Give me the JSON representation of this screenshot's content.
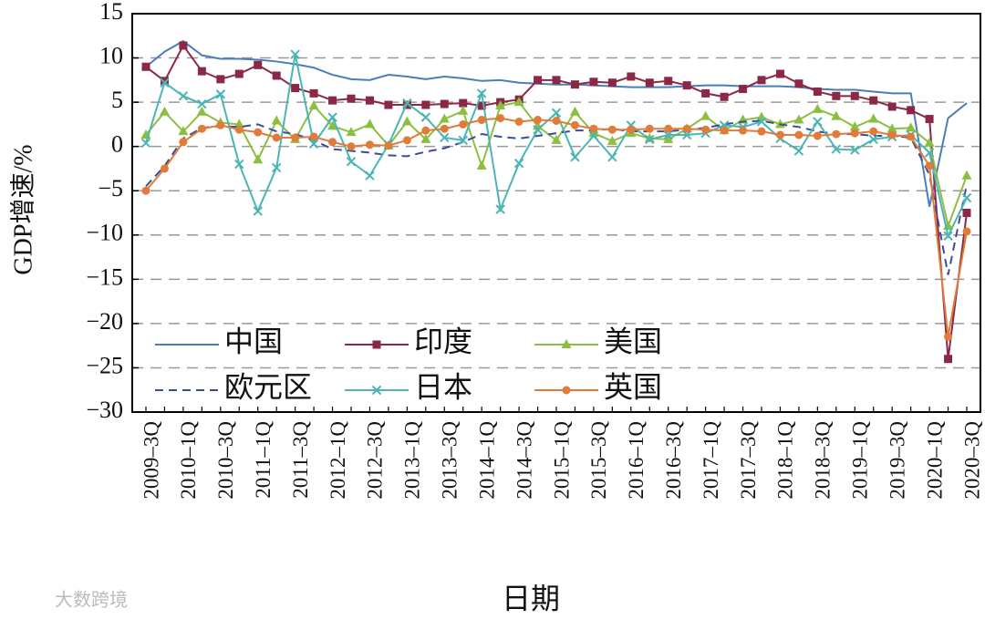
{
  "chart_data": {
    "type": "line",
    "ylabel": "GDP增速/%",
    "xlabel": "日期",
    "watermark": "大数跨境",
    "categories": [
      "2009–3Q",
      null,
      "2010–1Q",
      null,
      "2010–3Q",
      null,
      "2011–1Q",
      null,
      "2011–3Q",
      null,
      "2012–1Q",
      null,
      "2012–3Q",
      null,
      "2013–1Q",
      null,
      "2013–3Q",
      null,
      "2014–1Q",
      null,
      "2014–3Q",
      null,
      "2015–1Q",
      null,
      "2015–3Q",
      null,
      "2016–1Q",
      null,
      "2016–3Q",
      null,
      "2017–1Q",
      null,
      "2017–3Q",
      null,
      "2018–1Q",
      null,
      "2018–3Q",
      null,
      "2019–1Q",
      null,
      "2019–3Q",
      null,
      "2020–1Q",
      null,
      "2020–3Q"
    ],
    "series": [
      {
        "name": "中国",
        "color": "#4a7ebb",
        "marker": "none",
        "dash": false,
        "values": [
          9.0,
          10.7,
          11.9,
          10.3,
          9.9,
          9.9,
          9.8,
          9.6,
          9.3,
          8.9,
          8.1,
          7.6,
          7.5,
          8.1,
          7.9,
          7.6,
          7.9,
          7.7,
          7.4,
          7.5,
          7.2,
          7.1,
          7.0,
          7.0,
          6.9,
          6.8,
          6.7,
          6.7,
          6.7,
          6.8,
          6.9,
          6.9,
          6.8,
          6.8,
          6.8,
          6.7,
          6.5,
          6.4,
          6.4,
          6.2,
          6.0,
          6.0,
          -6.8,
          3.2,
          4.9
        ]
      },
      {
        "name": "印度",
        "color": "#8b2846",
        "marker": "square",
        "dash": false,
        "values": [
          9.0,
          7.4,
          11.4,
          8.5,
          7.6,
          8.2,
          9.2,
          8.0,
          6.6,
          6.0,
          5.2,
          5.4,
          5.2,
          4.7,
          4.7,
          4.7,
          4.8,
          4.9,
          4.6,
          5.0,
          5.3,
          7.5,
          7.5,
          7.0,
          7.3,
          7.2,
          7.9,
          7.2,
          7.4,
          6.9,
          6.0,
          5.6,
          6.5,
          7.5,
          8.2,
          7.1,
          6.2,
          5.7,
          5.7,
          5.2,
          4.5,
          4.1,
          3.1,
          -24.0,
          -7.5
        ]
      },
      {
        "name": "美国",
        "color": "#8cbf3f",
        "marker": "triangle",
        "dash": false,
        "values": [
          1.3,
          3.9,
          1.7,
          3.9,
          2.7,
          2.5,
          -1.5,
          2.9,
          0.8,
          4.6,
          2.3,
          1.6,
          2.5,
          0.1,
          2.8,
          0.8,
          3.1,
          4.0,
          -2.2,
          4.6,
          5.0,
          2.3,
          0.7,
          3.9,
          1.5,
          0.6,
          1.5,
          0.9,
          0.8,
          2.0,
          3.4,
          1.8,
          3.0,
          3.3,
          2.5,
          3.0,
          4.2,
          3.4,
          2.2,
          3.1,
          2.0,
          2.1,
          0.4,
          -9.0,
          -3.3
        ]
      },
      {
        "name": "欧元区",
        "color": "#3c4b9a",
        "marker": "none",
        "dash": true,
        "values": [
          -4.5,
          -2.2,
          0.9,
          2.1,
          2.3,
          2.2,
          2.5,
          1.7,
          1.4,
          0.7,
          -0.3,
          -0.5,
          -0.7,
          -1.0,
          -1.1,
          -0.6,
          -0.2,
          0.5,
          1.4,
          1.1,
          0.9,
          1.2,
          1.5,
          1.8,
          1.8,
          2.0,
          1.7,
          1.7,
          1.7,
          1.9,
          2.1,
          2.5,
          2.8,
          2.9,
          2.5,
          2.2,
          1.7,
          1.4,
          1.4,
          1.2,
          1.2,
          1.0,
          -3.2,
          -14.5,
          -4.3
        ]
      },
      {
        "name": "日本",
        "color": "#4bb5b5",
        "marker": "x",
        "dash": false,
        "values": [
          0.4,
          7.2,
          5.7,
          4.8,
          5.9,
          -2.0,
          -7.3,
          -2.4,
          10.4,
          0.3,
          3.3,
          -1.7,
          -3.3,
          0.2,
          4.9,
          3.3,
          1.0,
          0.7,
          6.0,
          -7.1,
          -1.9,
          1.9,
          3.8,
          -1.2,
          1.2,
          -1.2,
          2.4,
          0.8,
          1.3,
          1.3,
          1.5,
          2.4,
          2.2,
          2.8,
          0.9,
          -0.5,
          2.8,
          -0.3,
          -0.4,
          0.8,
          1.1,
          1.3,
          -0.7,
          -10.1,
          -5.8
        ]
      },
      {
        "name": "英国",
        "color": "#e07b39",
        "marker": "circle",
        "dash": false,
        "values": [
          -5.0,
          -2.5,
          0.5,
          2.0,
          2.4,
          1.9,
          1.6,
          1.0,
          1.0,
          1.1,
          0.5,
          0.0,
          0.2,
          0.1,
          0.7,
          1.8,
          2.0,
          2.5,
          3.0,
          3.2,
          2.8,
          3.0,
          2.9,
          2.4,
          2.0,
          1.9,
          1.9,
          2.0,
          2.0,
          2.0,
          1.9,
          1.8,
          1.8,
          1.7,
          1.3,
          1.3,
          1.2,
          1.4,
          1.5,
          1.7,
          1.3,
          1.1,
          -2.2,
          -21.5,
          -9.6
        ]
      }
    ],
    "ylim": [
      -30,
      15
    ],
    "yticks": [
      {
        "value": -30,
        "label": "−30"
      },
      {
        "value": -25,
        "label": "−25"
      },
      {
        "value": -20,
        "label": "−20"
      },
      {
        "value": -15,
        "label": "−15"
      },
      {
        "value": -10,
        "label": "−10"
      },
      {
        "value": -5,
        "label": "−5"
      },
      0,
      5,
      10,
      15
    ],
    "grid": true,
    "legend": "lower left"
  }
}
